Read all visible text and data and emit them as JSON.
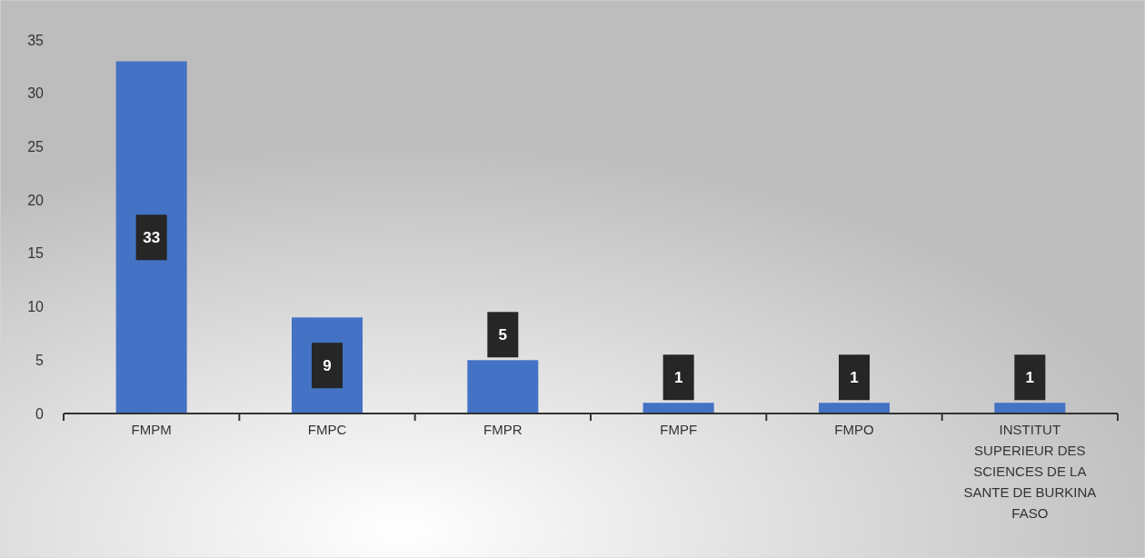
{
  "chart_data": {
    "type": "bar",
    "categories": [
      "FMPM",
      "FMPC",
      "FMPR",
      "FMPF",
      "FMPO",
      "INSTITUT SUPERIEUR DES SCIENCES DE LA SANTE DE BURKINA FASO"
    ],
    "values": [
      33,
      9,
      5,
      1,
      1,
      1
    ],
    "color": "#4472c4",
    "ylim": [
      0,
      35
    ],
    "yticks": [
      0,
      5,
      10,
      15,
      20,
      25,
      30,
      35
    ],
    "grid": false,
    "data_labels": true
  }
}
